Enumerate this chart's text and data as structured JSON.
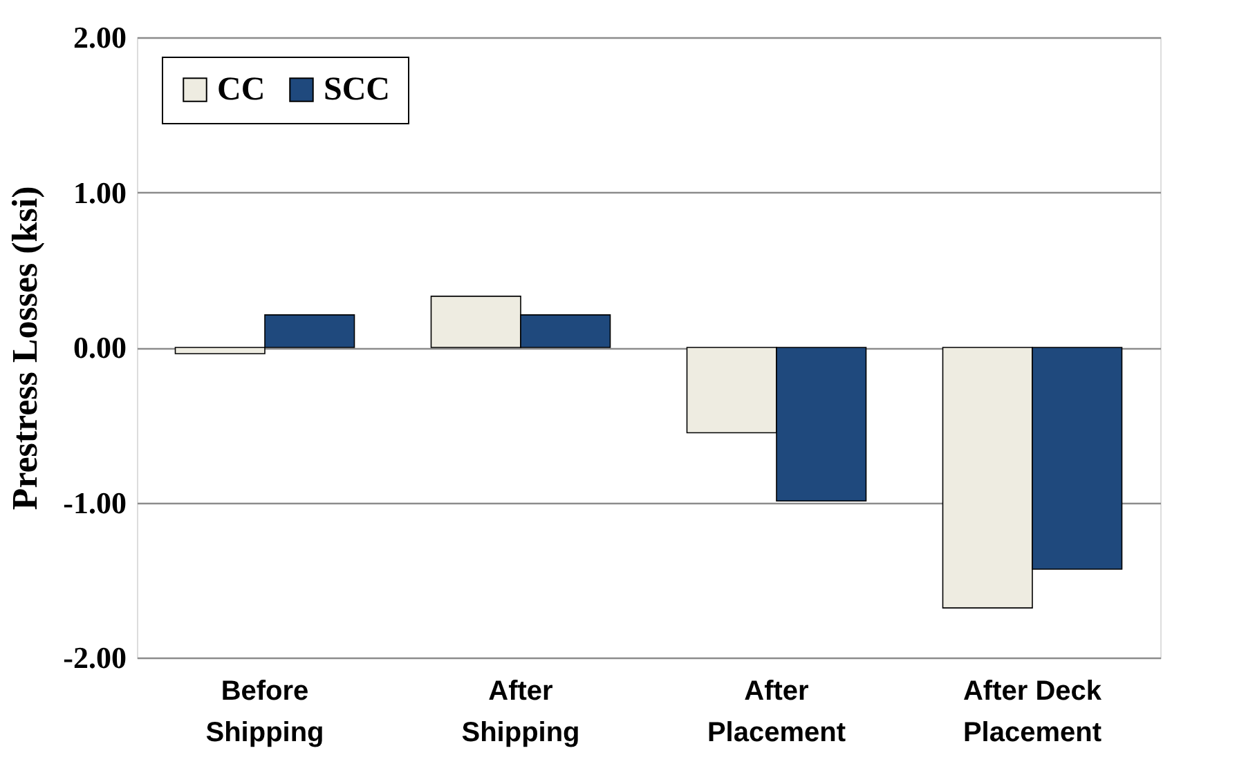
{
  "chart_data": {
    "type": "bar",
    "ylabel": "Prestress Losses (ksi)",
    "categories": [
      "Before Shipping",
      "After Shipping",
      "After Placement",
      "After Deck Placement"
    ],
    "series": [
      {
        "name": "CC",
        "color": "#eeece1",
        "values": [
          -0.04,
          0.33,
          -0.55,
          -1.68
        ]
      },
      {
        "name": "SCC",
        "color": "#1f497d",
        "values": [
          0.21,
          0.21,
          -0.99,
          -1.43
        ]
      }
    ],
    "ylim": [
      -2,
      2
    ],
    "yticks": [
      {
        "value": -2,
        "label": "-2.00"
      },
      {
        "value": -1,
        "label": "-1.00"
      },
      {
        "value": 0,
        "label": "0.00"
      },
      {
        "value": 1,
        "label": "1.00"
      },
      {
        "value": 2,
        "label": "2.00"
      }
    ],
    "grid": "y",
    "legend": "top left"
  }
}
